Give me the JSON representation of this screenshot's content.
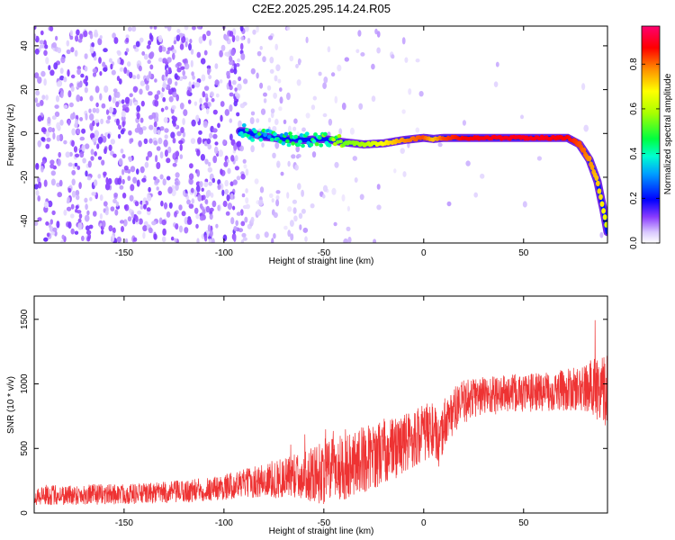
{
  "figure_title": "C2E2.2025.295.14.24.R05",
  "chart_data": [
    {
      "type": "heatmap",
      "id": "spectrogram",
      "title": "C2E2.2025.295.14.24.R05",
      "xlabel": "Height of straight line (km)",
      "ylabel": "Frequency (Hz)",
      "xlim": [
        -195,
        92
      ],
      "ylim": [
        -50,
        49
      ],
      "xticks": [
        -150,
        -100,
        -50,
        0,
        50
      ],
      "xtick_labels": [
        "-150",
        "-100",
        "-50",
        "0",
        "50"
      ],
      "yticks": [
        -40,
        -20,
        0,
        20,
        40
      ],
      "ytick_labels": [
        "-40",
        "-20",
        "0",
        "20",
        "40"
      ],
      "colorbar": {
        "label": "Normalized spectral amplitude",
        "range": [
          0,
          0.97
        ],
        "ticks": [
          0.0,
          0.2,
          0.4,
          0.6,
          0.8
        ],
        "tick_labels": [
          "0.0",
          "0.2",
          "0.4",
          "0.6",
          "0.8"
        ],
        "colormap": [
          "#ffffff",
          "#d9c8ff",
          "#6a00ff",
          "#0000ff",
          "#00c8ff",
          "#00ff60",
          "#aaff00",
          "#ffff00",
          "#ff9000",
          "#ff0000",
          "#ff0060"
        ]
      },
      "ridge": [
        {
          "x": -90,
          "y": 1.0,
          "amp": 0.45
        },
        {
          "x": -80,
          "y": -1.5,
          "amp": 0.42
        },
        {
          "x": -70,
          "y": -2.5,
          "amp": 0.4
        },
        {
          "x": -60,
          "y": -3.0,
          "amp": 0.45
        },
        {
          "x": -50,
          "y": -2.5,
          "amp": 0.5
        },
        {
          "x": -40,
          "y": -4.0,
          "amp": 0.55
        },
        {
          "x": -30,
          "y": -5.0,
          "amp": 0.6
        },
        {
          "x": -20,
          "y": -4.5,
          "amp": 0.7
        },
        {
          "x": -10,
          "y": -3.0,
          "amp": 0.8
        },
        {
          "x": 0,
          "y": -2.0,
          "amp": 0.85
        },
        {
          "x": 5,
          "y": -2.5,
          "amp": 0.75
        },
        {
          "x": 10,
          "y": -2.0,
          "amp": 0.85
        },
        {
          "x": 20,
          "y": -2.0,
          "amp": 0.9
        },
        {
          "x": 40,
          "y": -2.0,
          "amp": 0.92
        },
        {
          "x": 60,
          "y": -2.0,
          "amp": 0.92
        },
        {
          "x": 72,
          "y": -2.0,
          "amp": 0.9
        },
        {
          "x": 78,
          "y": -5.0,
          "amp": 0.85
        },
        {
          "x": 83,
          "y": -12.0,
          "amp": 0.8
        },
        {
          "x": 87,
          "y": -22.0,
          "amp": 0.75
        },
        {
          "x": 90,
          "y": -35.0,
          "amp": 0.7
        },
        {
          "x": 92,
          "y": -45.0,
          "amp": 0.65
        }
      ]
    },
    {
      "type": "line",
      "id": "snr",
      "xlabel": "Height of straight line (km)",
      "ylabel": "SNR (10 * v/v)",
      "xlim": [
        -195,
        92
      ],
      "ylim": [
        0,
        1680
      ],
      "xticks": [
        -150,
        -100,
        -50,
        0,
        50
      ],
      "xtick_labels": [
        "-150",
        "-100",
        "-50",
        "0",
        "50"
      ],
      "yticks": [
        0,
        500,
        1000,
        1500
      ],
      "ytick_labels": [
        "0",
        "500",
        "1000",
        "1500"
      ],
      "color": "#ee3333",
      "series": [
        {
          "name": "SNR",
          "x": [
            -195,
            -180,
            -160,
            -140,
            -120,
            -100,
            -90,
            -80,
            -70,
            -60,
            -55,
            -50,
            -45,
            -40,
            -35,
            -30,
            -25,
            -20,
            -15,
            -10,
            -5,
            0,
            5,
            8,
            10,
            15,
            20,
            25,
            30,
            40,
            50,
            60,
            70,
            80,
            85,
            90,
            92
          ],
          "mean": [
            140,
            140,
            145,
            150,
            165,
            200,
            230,
            250,
            270,
            290,
            300,
            320,
            340,
            370,
            390,
            420,
            440,
            480,
            500,
            540,
            580,
            620,
            650,
            500,
            700,
            790,
            860,
            900,
            910,
            920,
            930,
            940,
            950,
            960,
            970,
            980,
            950
          ],
          "spread": [
            80,
            80,
            80,
            80,
            90,
            100,
            110,
            140,
            160,
            180,
            220,
            260,
            240,
            280,
            250,
            260,
            250,
            260,
            240,
            240,
            230,
            230,
            220,
            180,
            200,
            180,
            170,
            160,
            160,
            150,
            150,
            150,
            160,
            180,
            250,
            280,
            300
          ]
        }
      ]
    }
  ]
}
